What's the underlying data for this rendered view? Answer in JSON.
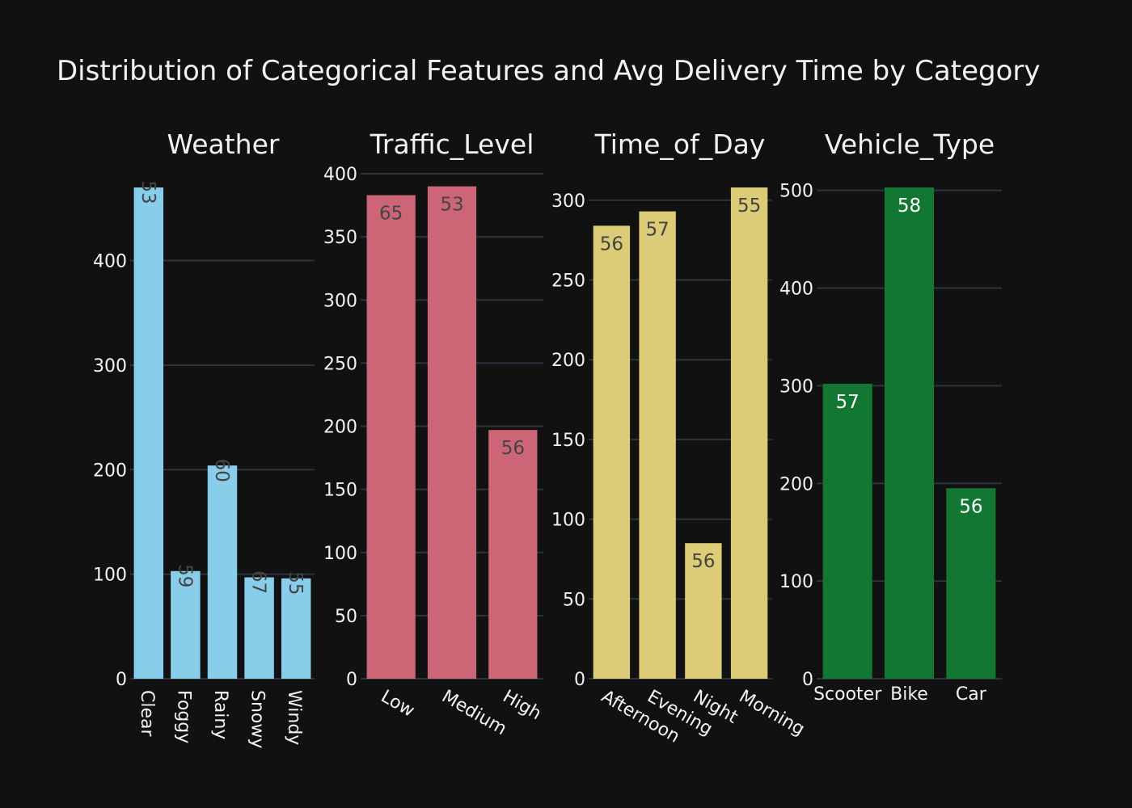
{
  "chart_data": {
    "title": "Distribution of Categorical Features and Avg Delivery Time by Category",
    "panels": [
      {
        "type": "bar",
        "title": "Weather",
        "categories": [
          "Clear",
          "Foggy",
          "Rainy",
          "Snowy",
          "Windy"
        ],
        "values": [
          470,
          103,
          204,
          97,
          96
        ],
        "labels": [
          "53",
          "59",
          "60",
          "67",
          "55"
        ],
        "ylim": [
          0,
          470
        ],
        "yticks": [
          0,
          100,
          200,
          300,
          400
        ],
        "color": "#88ceeb",
        "label_color": "#444444"
      },
      {
        "type": "bar",
        "title": "Traffic_Level",
        "categories": [
          "Low",
          "Medium",
          "High"
        ],
        "values": [
          383,
          390,
          197
        ],
        "labels": [
          "65",
          "53",
          "56"
        ],
        "ylim": [
          0,
          400
        ],
        "yticks": [
          0,
          50,
          100,
          150,
          200,
          250,
          300,
          350,
          400
        ],
        "color": "#cc6677",
        "label_color": "#444444"
      },
      {
        "type": "bar",
        "title": "Time_of_Day",
        "categories": [
          "Afternoon",
          "Evening",
          "Night",
          "Morning"
        ],
        "values": [
          284,
          293,
          85,
          308
        ],
        "labels": [
          "56",
          "57",
          "56",
          "55"
        ],
        "ylim": [
          0,
          308
        ],
        "yticks": [
          0,
          50,
          100,
          150,
          200,
          250,
          300
        ],
        "color": "#ddcc77",
        "label_color": "#444444"
      },
      {
        "type": "bar",
        "title": "Vehicle_Type",
        "categories": [
          "Scooter",
          "Bike",
          "Car"
        ],
        "values": [
          302,
          503,
          195
        ],
        "labels": [
          "57",
          "58",
          "56"
        ],
        "ylim": [
          0,
          503
        ],
        "yticks": [
          0,
          100,
          200,
          300,
          400,
          500
        ],
        "color": "#117733",
        "label_color": "#ffffff"
      }
    ]
  }
}
